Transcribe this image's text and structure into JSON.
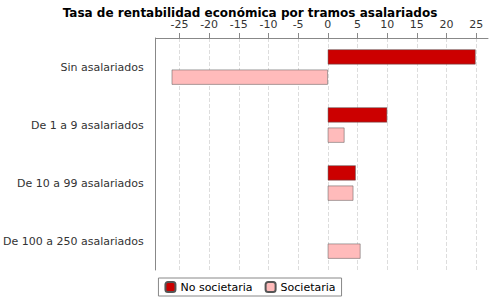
{
  "chart_data": {
    "type": "bar",
    "orientation": "horizontal",
    "title": "Tasa de rentabilidad económica por tramos asalariados",
    "categories": [
      "Sin asalariados",
      "De 1 a 9 asalariados",
      "De 10 a 99 asalariados",
      "De 100 a 250 asalariados"
    ],
    "series": [
      {
        "name": "No societaria",
        "color": "#cc0000",
        "values": [
          24.9,
          10.0,
          4.7,
          null
        ]
      },
      {
        "name": "Societaria",
        "color": "#ffbbbb",
        "values": [
          -26.3,
          2.8,
          4.3,
          5.5
        ]
      }
    ],
    "xlim": [
      -29,
      27
    ],
    "xticks": [
      -25,
      -20,
      -15,
      -10,
      -5,
      0,
      5,
      10,
      15,
      20,
      25
    ],
    "grid": true,
    "legend": "bottom"
  }
}
